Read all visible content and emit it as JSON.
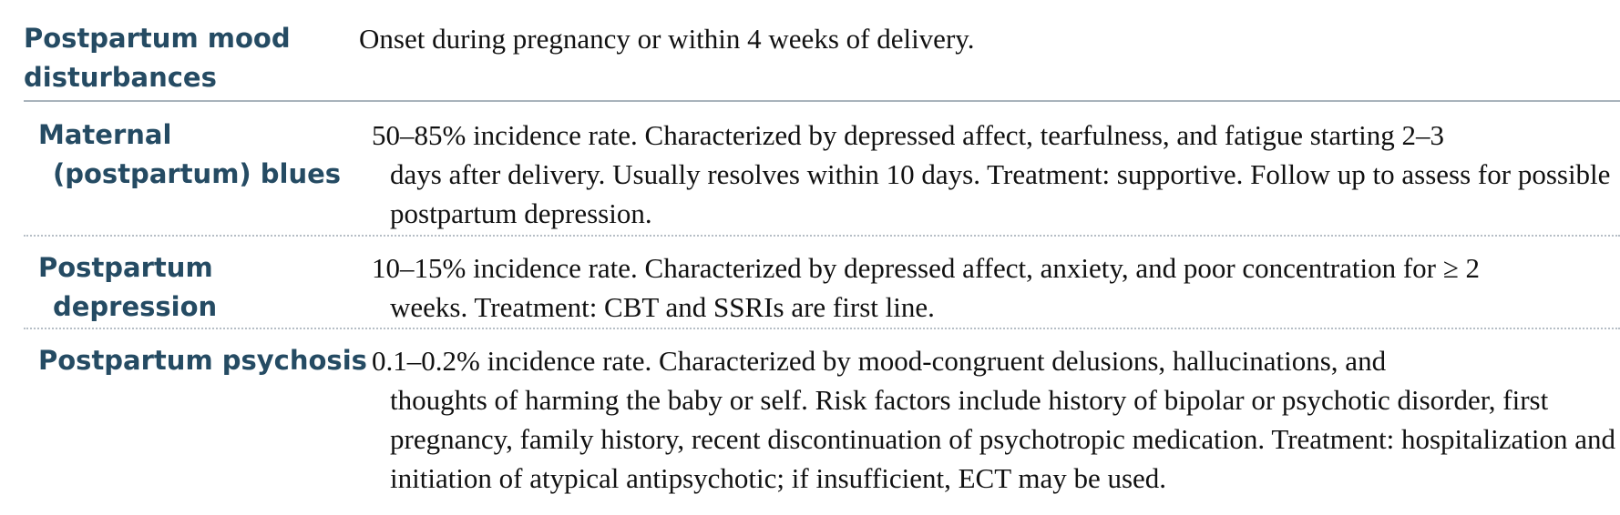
{
  "header": {
    "term_line1": "Postpartum mood",
    "term_line2": "disturbances",
    "description": "Onset during pregnancy or within 4 weeks of delivery."
  },
  "rows": [
    {
      "term_line1": "Maternal",
      "term_line2": "(postpartum) blues",
      "desc_line1": "50–85% incidence rate. Characterized by depressed affect, tearfulness, and fatigue starting 2–3",
      "desc_rest": "days after delivery. Usually resolves within 10 days. Treatment: supportive. Follow up to assess for possible postpartum depression."
    },
    {
      "term_line1": "Postpartum",
      "term_line2": "depression",
      "desc_line1": "10–15% incidence rate. Characterized by depressed affect, anxiety, and poor concentration for ≥ 2",
      "desc_rest": "weeks. Treatment: CBT and SSRIs are first line."
    },
    {
      "term_line1": "Postpartum psychosis",
      "term_line2": "",
      "desc_line1": "0.1–0.2% incidence rate. Characterized by mood-congruent delusions, hallucinations, and",
      "desc_rest": "thoughts of harming the baby or self. Risk factors include history of bipolar or psychotic disorder, first pregnancy, family history, recent discontinuation of psychotropic medication. Treatment: hospitalization and initiation of atypical antipsychotic; if insufficient, ECT may be used."
    }
  ]
}
